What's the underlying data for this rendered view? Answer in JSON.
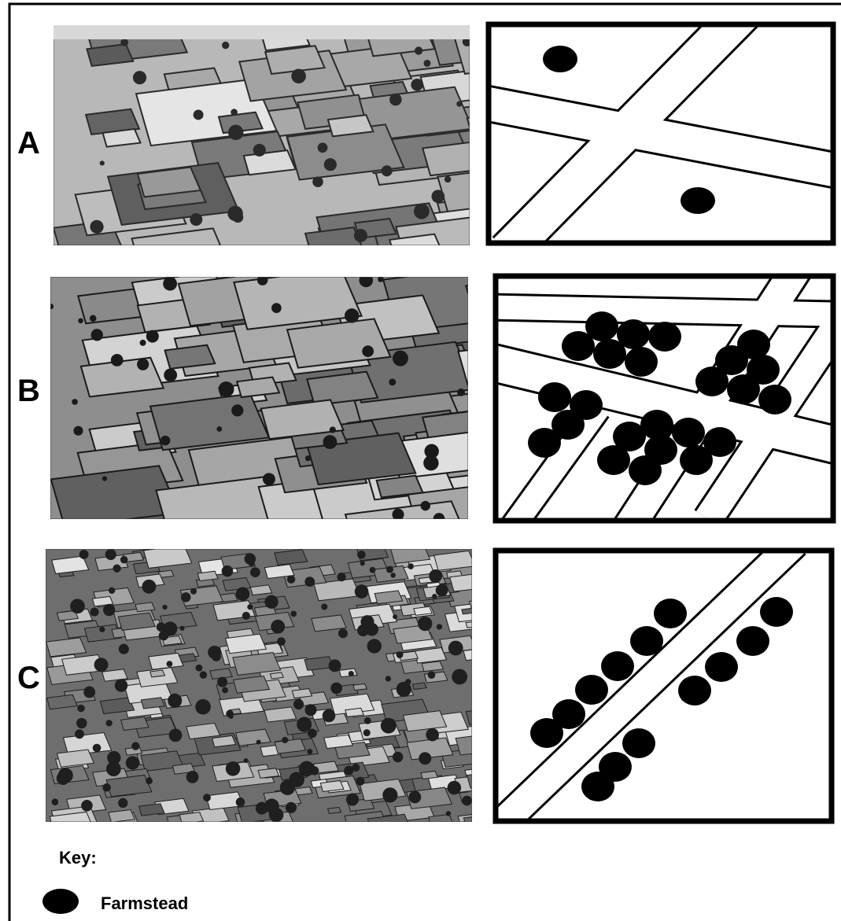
{
  "rows": [
    {
      "label": "A"
    },
    {
      "label": "B"
    },
    {
      "label": "C"
    }
  ],
  "key": {
    "title": "Key:",
    "items": [
      {
        "label": "Farmstead"
      }
    ]
  }
}
